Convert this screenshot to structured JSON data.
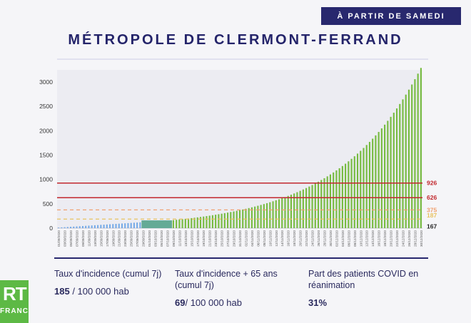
{
  "header": {
    "badge": "À PARTIR DE SAMEDI",
    "title": "MÉTROPOLE DE CLERMONT-FERRAND"
  },
  "chart_data": {
    "type": "bar",
    "title": "MÉTROPOLE DE CLERMONT-FERRAND",
    "xlabel": "",
    "ylabel": "",
    "ylim": [
      0,
      3250
    ],
    "yticks": [
      0,
      500,
      1000,
      1500,
      2000,
      2500,
      3000
    ],
    "grid": false,
    "x_start": "2020-09-01",
    "x_end": "2020-12-30",
    "x_label_format": "DD/MM/YYYY",
    "x_label_step_days": 2,
    "historical_end": "2020-09-28",
    "plateau_end": "2020-10-08",
    "historical_values": [
      12,
      16,
      20,
      24,
      28,
      32,
      36,
      40,
      44,
      48,
      52,
      56,
      60,
      64,
      68,
      72,
      76,
      80,
      84,
      88,
      92,
      96,
      100,
      104,
      108,
      112,
      116,
      120
    ],
    "plateau_value": 160,
    "projection_daily_growth": 0.0371,
    "colors": {
      "historical": "#6ea6e6",
      "plateau": "#64aa96",
      "projection": "#76bb40"
    },
    "thresholds": [
      {
        "value": 926,
        "label": "926",
        "color": "#c2282e",
        "style": "solid"
      },
      {
        "value": 626,
        "label": "626",
        "color": "#c2282e",
        "style": "solid"
      },
      {
        "value": 375,
        "label": "375",
        "color": "#f0a070",
        "style": "dashed"
      },
      {
        "value": 187,
        "label": "187",
        "color": "#e8c260",
        "style": "dashed"
      },
      {
        "value": 167,
        "label": "167",
        "color": "#222222",
        "style": "none"
      }
    ]
  },
  "stats": [
    {
      "label": "Taux d'incidence (cumul 7j)",
      "value_bold": "185",
      "value_rest": " / 100 000 hab"
    },
    {
      "label": "Taux d'incidence + 65 ans (cumul 7j)",
      "value_bold": "69",
      "value_rest": "/ 100 000 hab"
    },
    {
      "label": "Part des patients COVID en réanimation",
      "value_bold": "31%",
      "value_rest": ""
    }
  ],
  "logo": {
    "top": "RT",
    "bottom": "FRANCE"
  }
}
